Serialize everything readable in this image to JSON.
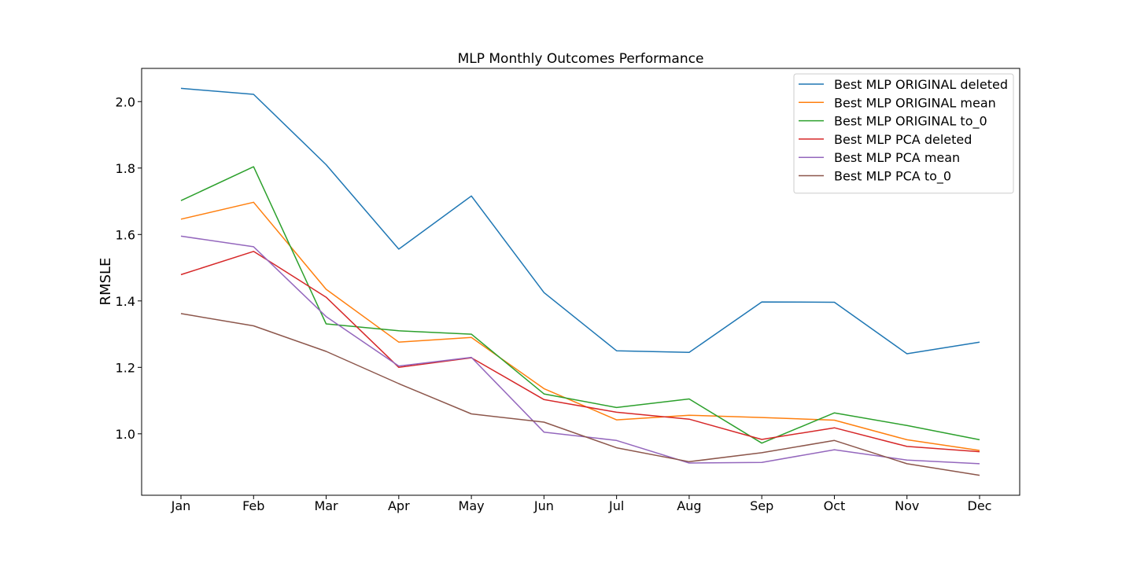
{
  "chart_data": {
    "type": "line",
    "title": "MLP Monthly Outcomes Performance",
    "xlabel": "",
    "ylabel": "RMSLE",
    "categories": [
      "Jan",
      "Feb",
      "Mar",
      "Apr",
      "May",
      "Jun",
      "Jul",
      "Aug",
      "Sep",
      "Oct",
      "Nov",
      "Dec"
    ],
    "ylim": [
      0.815,
      2.1
    ],
    "yticks": [
      1.0,
      1.2,
      1.4,
      1.6,
      1.8,
      2.0
    ],
    "ytick_labels": [
      "1.0",
      "1.2",
      "1.4",
      "1.6",
      "1.8",
      "2.0"
    ],
    "grid": false,
    "legend_position": "top-right",
    "series": [
      {
        "name": "Best MLP ORIGINAL deleted",
        "color": "#1f77b4",
        "values": [
          2.04,
          2.022,
          1.81,
          1.556,
          1.716,
          1.425,
          1.25,
          1.245,
          1.397,
          1.396,
          1.241,
          1.276
        ]
      },
      {
        "name": "Best MLP ORIGINAL mean",
        "color": "#ff7f0e",
        "values": [
          1.646,
          1.697,
          1.435,
          1.276,
          1.29,
          1.136,
          1.042,
          1.056,
          1.049,
          1.041,
          0.982,
          0.95
        ]
      },
      {
        "name": "Best MLP ORIGINAL to_0",
        "color": "#2ca02c",
        "values": [
          1.702,
          1.804,
          1.331,
          1.31,
          1.3,
          1.12,
          1.079,
          1.105,
          0.972,
          1.063,
          1.025,
          0.982
        ]
      },
      {
        "name": "Best MLP PCA deleted",
        "color": "#d62728",
        "values": [
          1.479,
          1.549,
          1.411,
          1.2,
          1.229,
          1.103,
          1.065,
          1.044,
          0.983,
          1.018,
          0.962,
          0.946
        ]
      },
      {
        "name": "Best MLP PCA mean",
        "color": "#9467bd",
        "values": [
          1.595,
          1.563,
          1.353,
          1.204,
          1.23,
          1.005,
          0.98,
          0.912,
          0.914,
          0.952,
          0.921,
          0.91
        ]
      },
      {
        "name": "Best MLP PCA to_0",
        "color": "#8c564b",
        "values": [
          1.362,
          1.325,
          1.248,
          1.151,
          1.06,
          1.035,
          0.958,
          0.916,
          0.943,
          0.98,
          0.91,
          0.875
        ]
      }
    ]
  }
}
